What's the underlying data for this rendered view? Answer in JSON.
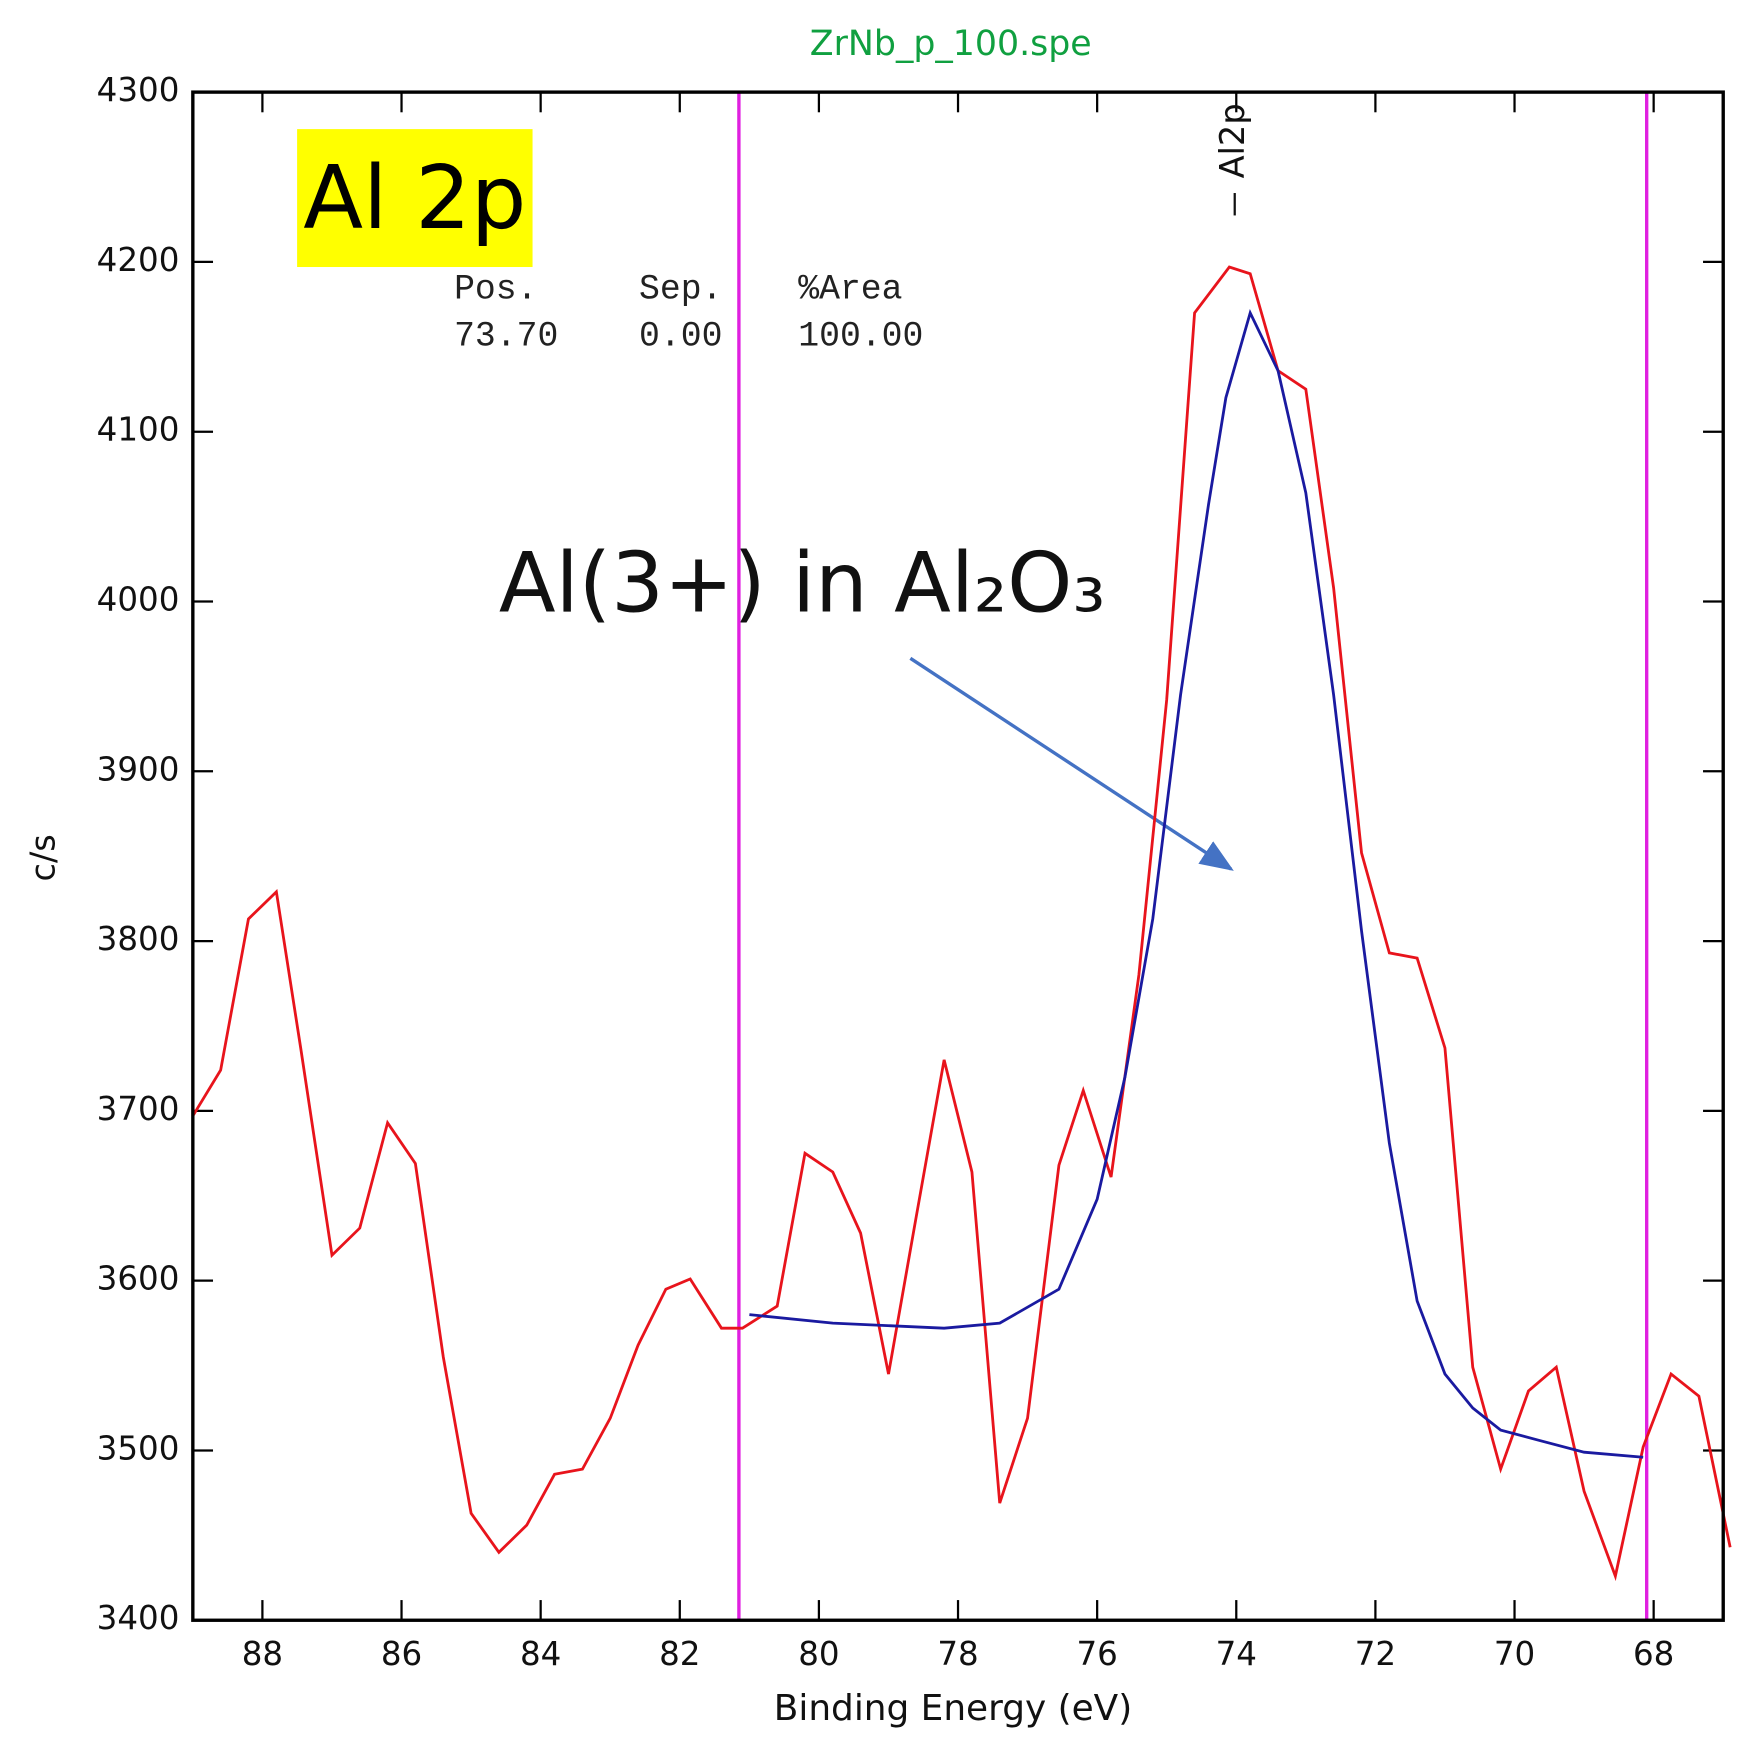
{
  "chart_data": {
    "type": "line",
    "title": "ZrNb_p_100.spe",
    "xlabel": "Binding Energy (eV)",
    "ylabel": "c/s",
    "xlim": [
      89,
      67
    ],
    "xticks": [
      88,
      86,
      84,
      82,
      80,
      78,
      76,
      74,
      72,
      70,
      68
    ],
    "ylim": [
      3400,
      4300
    ],
    "yticks": [
      3400,
      3500,
      3600,
      3700,
      3800,
      3900,
      4000,
      4100,
      4200,
      4300
    ],
    "series": [
      {
        "color": "#e8141c",
        "x": [
          89.0,
          88.6,
          88.2,
          87.8,
          87.45,
          87.0,
          86.6,
          86.2,
          85.8,
          85.4,
          85.0,
          84.6,
          84.2,
          83.8,
          83.4,
          83.0,
          82.6,
          82.2,
          81.85,
          81.4,
          81.1,
          80.6,
          80.2,
          79.8,
          79.4,
          79.0,
          78.6,
          78.2,
          77.8,
          77.4,
          77.0,
          76.55,
          76.2,
          75.8,
          75.4,
          75.0,
          74.6,
          74.1,
          73.8,
          73.4,
          73.0,
          72.6,
          72.2,
          71.8,
          71.4,
          71.0,
          70.6,
          70.2,
          69.8,
          69.4,
          69.0,
          68.55,
          68.15,
          67.75,
          67.35,
          66.9
        ],
        "values": [
          3697,
          3724,
          3813,
          3829,
          3737,
          3615,
          3631,
          3693,
          3669,
          3555,
          3463,
          3440,
          3456,
          3486,
          3489,
          3519,
          3562,
          3595,
          3601,
          3572,
          3572,
          3585,
          3675,
          3664,
          3628,
          3545,
          3638,
          3730,
          3664,
          3469,
          3519,
          3668,
          3712,
          3661,
          3780,
          3942,
          4170,
          4197,
          4193,
          4136,
          4125,
          4008,
          3852,
          3793,
          3790,
          3737,
          3549,
          3489,
          3535,
          3549,
          3476,
          3426,
          3502,
          3545,
          3532,
          3443
        ]
      },
      {
        "color": "#1a1aa0",
        "x": [
          81.0,
          79.8,
          78.2,
          77.4,
          76.55,
          76.0,
          75.6,
          75.2,
          74.8,
          74.4,
          74.15,
          73.8,
          73.4,
          73.0,
          72.6,
          72.2,
          71.8,
          71.4,
          71.0,
          70.6,
          70.2,
          69.65,
          69.0,
          68.15
        ],
        "values": [
          3580,
          3575,
          3572,
          3575,
          3595,
          3648,
          3720,
          3813,
          3945,
          4057,
          4120,
          4170,
          4136,
          4064,
          3945,
          3806,
          3681,
          3588,
          3545,
          3525,
          3512,
          3506,
          3499,
          3496
        ]
      }
    ],
    "region": {
      "color": "#e020e0",
      "x": [
        81.15,
        68.1
      ]
    },
    "peak_label": {
      "text": "Al2p",
      "x": 73.7
    },
    "badge": "Al 2p",
    "table": {
      "header": [
        "Pos.",
        "Sep.",
        "%Area"
      ],
      "row": [
        "73.70",
        "0.00",
        "100.00"
      ]
    },
    "annotation": "Al(3+) in Al₂O₃"
  }
}
